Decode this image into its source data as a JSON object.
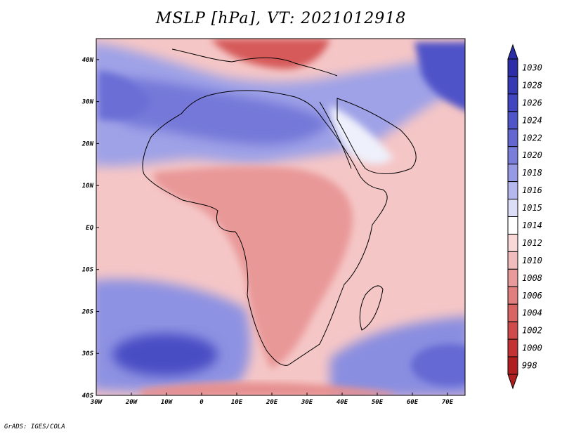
{
  "title": "MSLP [hPa], VT: 2021012918",
  "footer": "GrADS: IGES/COLA",
  "map": {
    "lon_range": [
      -30,
      75
    ],
    "lat_range": [
      -40,
      45
    ],
    "lon_ticks": [
      {
        "value": -30,
        "label": "30W"
      },
      {
        "value": -20,
        "label": "20W"
      },
      {
        "value": -10,
        "label": "10W"
      },
      {
        "value": 0,
        "label": "0"
      },
      {
        "value": 10,
        "label": "10E"
      },
      {
        "value": 20,
        "label": "20E"
      },
      {
        "value": 30,
        "label": "30E"
      },
      {
        "value": 40,
        "label": "40E"
      },
      {
        "value": 50,
        "label": "50E"
      },
      {
        "value": 60,
        "label": "60E"
      },
      {
        "value": 70,
        "label": "70E"
      }
    ],
    "lat_ticks": [
      {
        "value": 40,
        "label": "40N"
      },
      {
        "value": 30,
        "label": "30N"
      },
      {
        "value": 20,
        "label": "20N"
      },
      {
        "value": 10,
        "label": "10N"
      },
      {
        "value": 0,
        "label": "EQ"
      },
      {
        "value": -10,
        "label": "10S"
      },
      {
        "value": -20,
        "label": "20S"
      },
      {
        "value": -30,
        "label": "30S"
      },
      {
        "value": -40,
        "label": "40S"
      }
    ]
  },
  "colorbar": {
    "levels": [
      {
        "label": "1030",
        "color": "#2b2ea6"
      },
      {
        "label": "1028",
        "color": "#3539b4"
      },
      {
        "label": "1026",
        "color": "#4146c0"
      },
      {
        "label": "1024",
        "color": "#5054c9"
      },
      {
        "label": "1022",
        "color": "#6367d2"
      },
      {
        "label": "1020",
        "color": "#7a7edb"
      },
      {
        "label": "1018",
        "color": "#9699e4"
      },
      {
        "label": "1016",
        "color": "#b5b8ee"
      },
      {
        "label": "1015",
        "color": "#dcdef8"
      },
      {
        "label": "1014",
        "color": "#ffffff"
      },
      {
        "label": "1012",
        "color": "#f9d8d8"
      },
      {
        "label": "1010",
        "color": "#f3bcbc"
      },
      {
        "label": "1008",
        "color": "#e99b9b"
      },
      {
        "label": "1006",
        "color": "#e17f7f"
      },
      {
        "label": "1004",
        "color": "#d86464"
      },
      {
        "label": "1002",
        "color": "#cf4a4a"
      },
      {
        "label": "1000",
        "color": "#c33333"
      },
      {
        "label": "998",
        "color": "#b01f1f"
      }
    ]
  }
}
